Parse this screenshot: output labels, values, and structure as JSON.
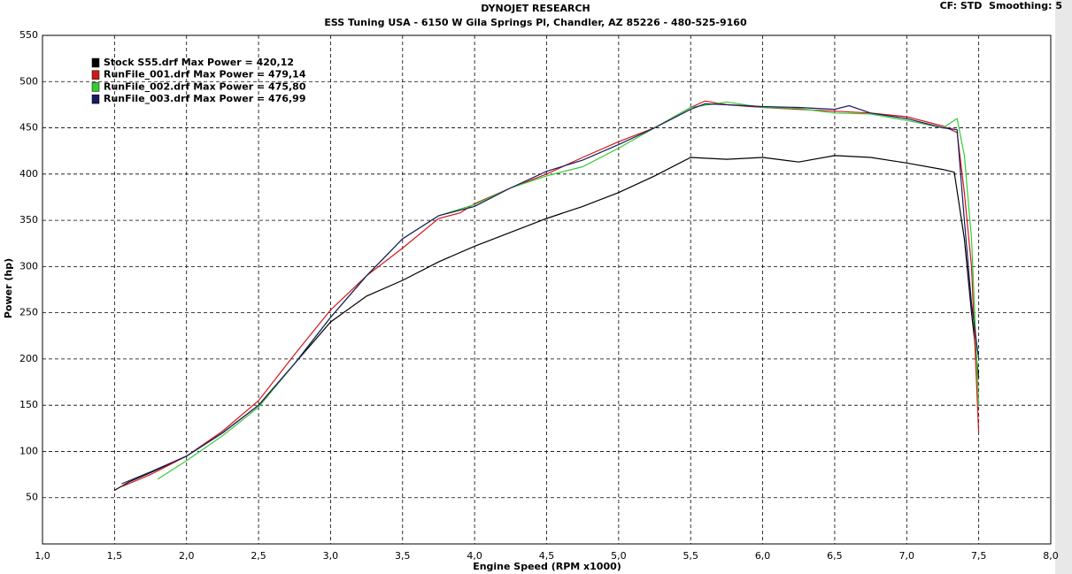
{
  "chart_data": {
    "type": "line",
    "title": "DYNOJET RESEARCH",
    "subtitle": "ESS Tuning USA - 6150 W Gila Springs Pl, Chandler, AZ 85226 - 480-525-9160",
    "annotation": "CF: STD  Smoothing: 5",
    "x_label": "Engine Speed (RPM x1000)",
    "y_label": "Power (hp)",
    "xlim": [
      1,
      8
    ],
    "ylim": [
      0,
      550
    ],
    "xticks": [
      {
        "value": 1,
        "label": "1,0"
      },
      {
        "value": 1.5,
        "label": "1,5"
      },
      {
        "value": 2,
        "label": "2,0"
      },
      {
        "value": 2.5,
        "label": "2,5"
      },
      {
        "value": 3,
        "label": "3,0"
      },
      {
        "value": 3.5,
        "label": "3,5"
      },
      {
        "value": 4,
        "label": "4,0"
      },
      {
        "value": 4.5,
        "label": "4,5"
      },
      {
        "value": 5,
        "label": "5,0"
      },
      {
        "value": 5.5,
        "label": "5,5"
      },
      {
        "value": 6,
        "label": "6,0"
      },
      {
        "value": 6.5,
        "label": "6,5"
      },
      {
        "value": 7,
        "label": "7,0"
      },
      {
        "value": 7.5,
        "label": "7,5"
      },
      {
        "value": 8,
        "label": "8,0"
      }
    ],
    "yticks": [
      50,
      100,
      150,
      200,
      250,
      300,
      350,
      400,
      450,
      500,
      550
    ],
    "grid": true,
    "series": [
      {
        "name": "Stock S55.drf Max Power = 420,12",
        "color": "#000000",
        "x": [
          1.5,
          1.6,
          1.75,
          2.0,
          2.25,
          2.5,
          2.75,
          3.0,
          3.25,
          3.5,
          3.75,
          4.0,
          4.25,
          4.5,
          4.75,
          5.0,
          5.25,
          5.5,
          5.75,
          6.0,
          6.25,
          6.5,
          6.75,
          7.0,
          7.25,
          7.33,
          7.4,
          7.45,
          7.5
        ],
        "values": [
          58,
          67,
          77,
          95,
          120,
          150,
          195,
          240,
          268,
          285,
          305,
          322,
          337,
          352,
          365,
          380,
          398,
          418,
          416,
          418,
          413,
          420,
          418,
          412,
          405,
          402,
          330,
          250,
          180
        ]
      },
      {
        "name": "RunFile_001.drf Max Power = 479,14",
        "color": "#d01818",
        "x": [
          1.55,
          1.75,
          2.0,
          2.25,
          2.5,
          2.75,
          3.0,
          3.25,
          3.5,
          3.75,
          3.9,
          4.0,
          4.25,
          4.5,
          4.75,
          5.0,
          5.25,
          5.5,
          5.6,
          5.75,
          6.0,
          6.25,
          6.5,
          6.75,
          7.0,
          7.25,
          7.35,
          7.4,
          7.45,
          7.5
        ],
        "values": [
          62,
          75,
          95,
          122,
          155,
          205,
          253,
          290,
          320,
          352,
          358,
          368,
          385,
          400,
          418,
          435,
          450,
          472,
          479,
          475,
          472,
          470,
          468,
          466,
          462,
          452,
          445,
          380,
          300,
          120
        ]
      },
      {
        "name": "RunFile_002.drf Max Power = 475,80",
        "color": "#33cc33",
        "x": [
          1.8,
          2.0,
          2.25,
          2.5,
          2.75,
          3.0,
          3.25,
          3.5,
          3.75,
          4.0,
          4.25,
          4.5,
          4.75,
          5.0,
          5.25,
          5.5,
          5.75,
          6.0,
          6.25,
          6.5,
          6.75,
          7.0,
          7.25,
          7.35,
          7.4,
          7.45,
          7.5
        ],
        "values": [
          70,
          90,
          117,
          148,
          195,
          245,
          290,
          330,
          355,
          367,
          385,
          398,
          408,
          428,
          450,
          472,
          478,
          472,
          471,
          466,
          465,
          458,
          450,
          460,
          420,
          330,
          150
        ]
      },
      {
        "name": "RunFile_003.drf Max Power = 476,99",
        "color": "#1a1a60",
        "x": [
          1.55,
          1.75,
          2.0,
          2.25,
          2.5,
          2.75,
          3.0,
          3.25,
          3.5,
          3.75,
          4.0,
          4.25,
          4.5,
          4.75,
          5.0,
          5.25,
          5.5,
          5.6,
          5.75,
          6.0,
          6.25,
          6.5,
          6.6,
          6.75,
          7.0,
          7.25,
          7.35,
          7.4,
          7.45,
          7.5
        ],
        "values": [
          65,
          78,
          95,
          120,
          150,
          195,
          245,
          290,
          330,
          355,
          365,
          385,
          403,
          415,
          432,
          450,
          470,
          476,
          475,
          473,
          472,
          470,
          474,
          466,
          460,
          450,
          448,
          350,
          260,
          200
        ]
      }
    ]
  }
}
